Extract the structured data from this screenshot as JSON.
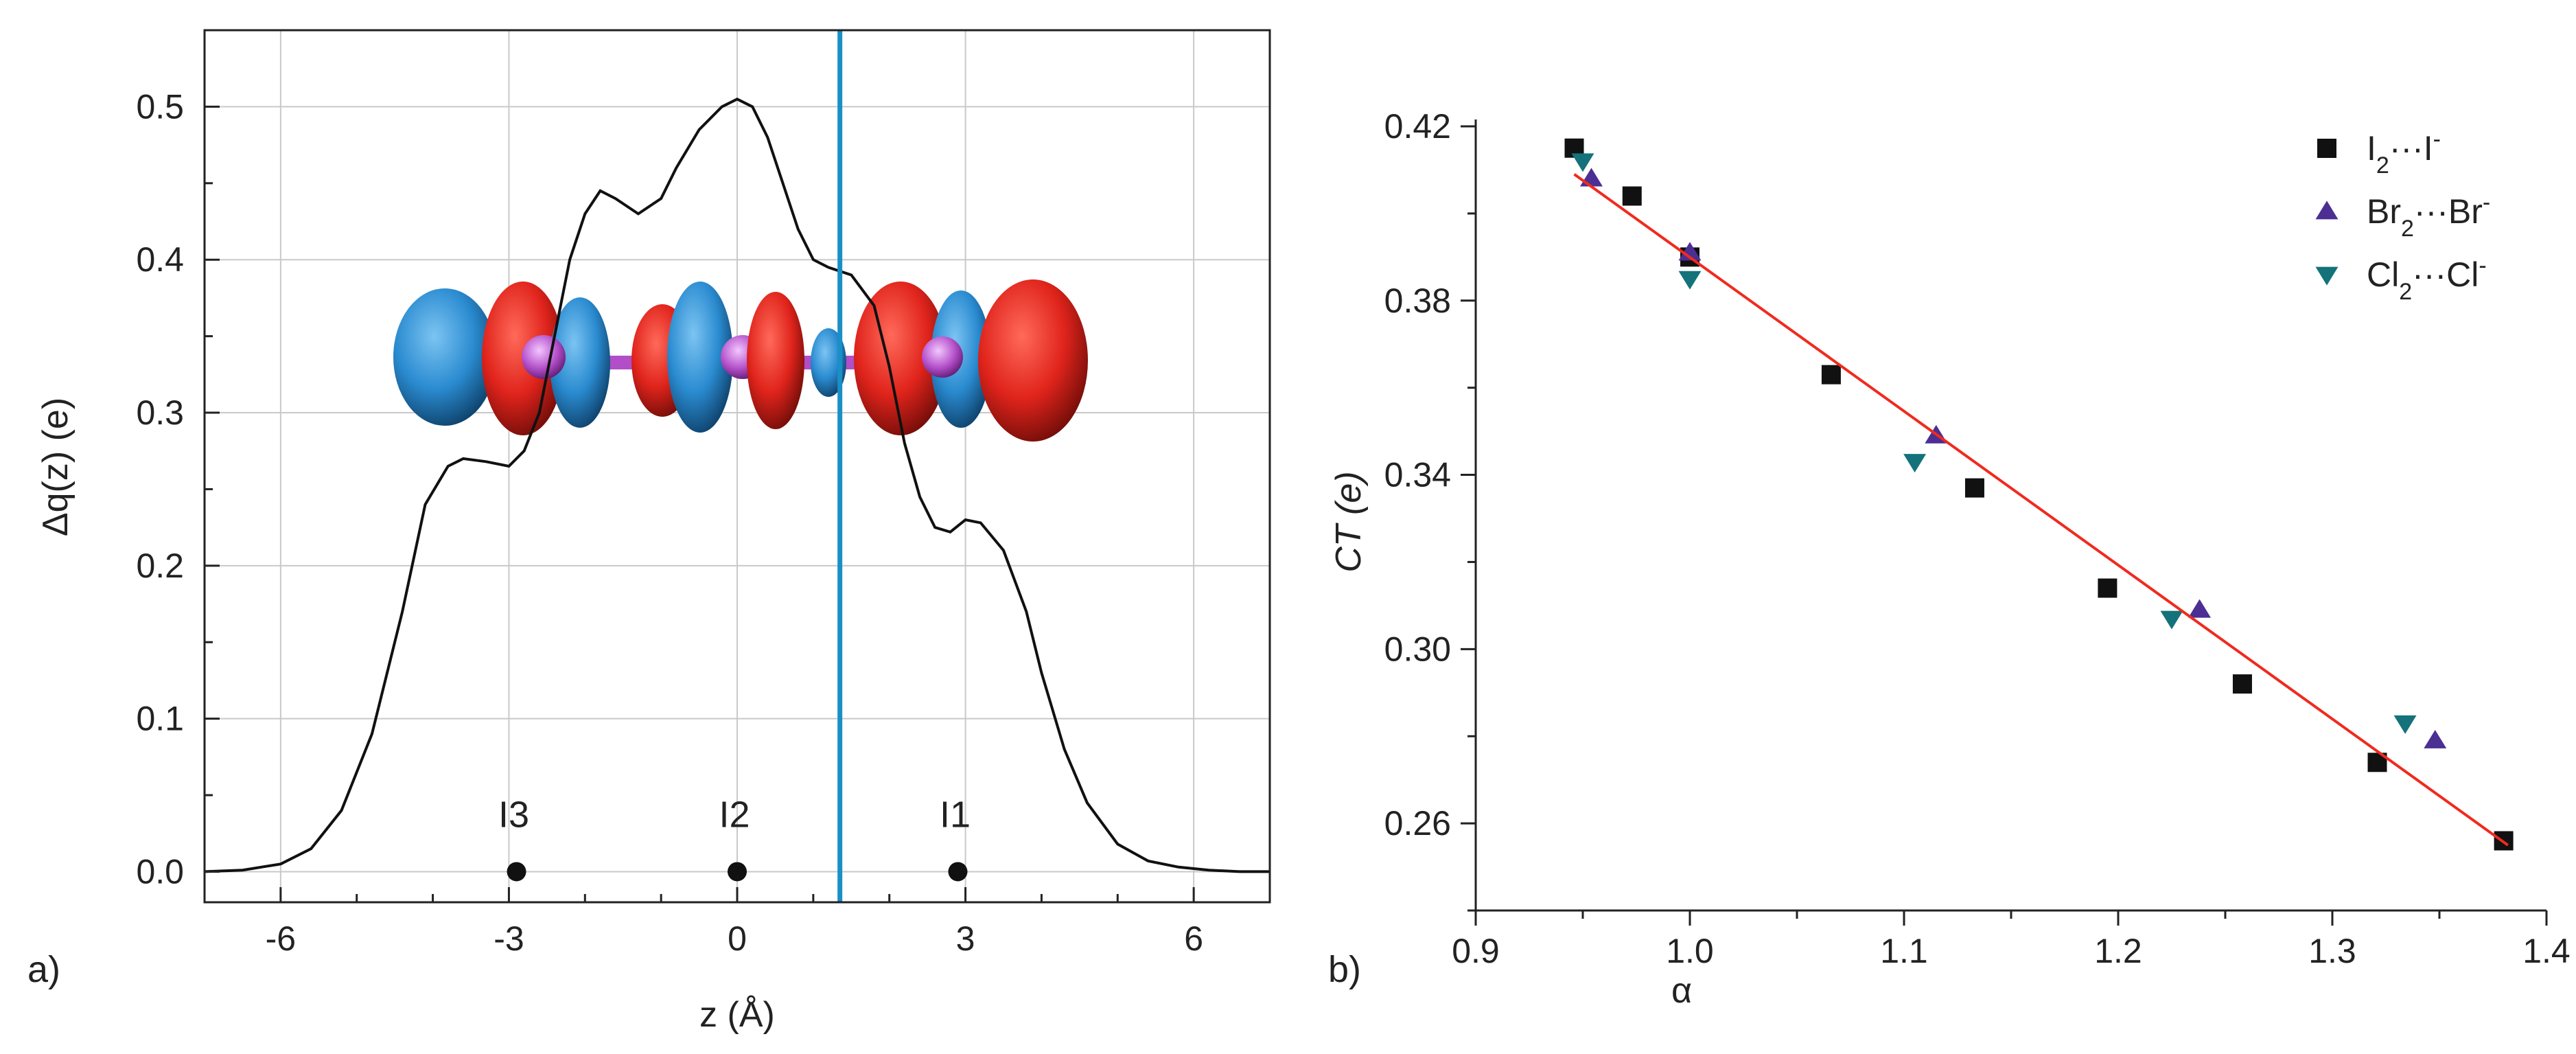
{
  "panels": {
    "a": "a)",
    "b": "b)"
  },
  "chart_data": [
    {
      "type": "line",
      "xlabel": "z (Å)",
      "ylabel": "Δq(z) (e)",
      "xlim": [
        -7,
        7
      ],
      "ylim": [
        -0.02,
        0.55
      ],
      "xticks": [
        -6,
        -3,
        0,
        3,
        6
      ],
      "yticks": [
        0.0,
        0.1,
        0.2,
        0.3,
        0.4,
        0.5
      ],
      "ytick_labels": [
        "0.0",
        "0.1",
        "0.2",
        "0.3",
        "0.4",
        "0.5"
      ],
      "grid": true,
      "series": [
        {
          "x": [
            -7,
            -6.5,
            -6,
            -5.6,
            -5.2,
            -4.8,
            -4.4,
            -4.1,
            -3.8,
            -3.6,
            -3.3,
            -3.0,
            -2.8,
            -2.6,
            -2.4,
            -2.2,
            -2.0,
            -1.8,
            -1.6,
            -1.3,
            -1.0,
            -0.8,
            -0.5,
            -0.2,
            0.0,
            0.2,
            0.4,
            0.6,
            0.8,
            1.0,
            1.2,
            1.5,
            1.8,
            2.0,
            2.2,
            2.4,
            2.6,
            2.8,
            3.0,
            3.2,
            3.5,
            3.8,
            4.0,
            4.3,
            4.6,
            5.0,
            5.4,
            5.8,
            6.2,
            6.6,
            7.0
          ],
          "y": [
            0.0,
            0.001,
            0.005,
            0.015,
            0.04,
            0.09,
            0.17,
            0.24,
            0.265,
            0.27,
            0.268,
            0.265,
            0.275,
            0.3,
            0.35,
            0.4,
            0.43,
            0.445,
            0.44,
            0.43,
            0.44,
            0.46,
            0.485,
            0.5,
            0.505,
            0.5,
            0.48,
            0.45,
            0.42,
            0.4,
            0.395,
            0.39,
            0.37,
            0.33,
            0.28,
            0.245,
            0.225,
            0.222,
            0.23,
            0.228,
            0.21,
            0.17,
            0.13,
            0.08,
            0.045,
            0.018,
            0.007,
            0.003,
            0.001,
            0.0,
            0.0
          ]
        }
      ],
      "markers": [
        {
          "x": -2.9,
          "y": 0.0,
          "label": "I3"
        },
        {
          "x": 0.0,
          "y": 0.0,
          "label": "I2"
        },
        {
          "x": 2.9,
          "y": 0.0,
          "label": "I1"
        }
      ],
      "vline": {
        "x": 1.35,
        "color": "#1a8fc7"
      },
      "colors": {
        "line": "#111111",
        "marker": "#111111",
        "lobe_positive": "#e0241c",
        "lobe_negative": "#2a8bd0",
        "atom": "#b24ec8"
      }
    },
    {
      "type": "scatter",
      "xlabel": "α",
      "ylabel": "CT (e)",
      "xlim": [
        0.9,
        1.4
      ],
      "ylim": [
        0.24,
        0.42
      ],
      "xticks": [
        0.9,
        1.0,
        1.1,
        1.2,
        1.3,
        1.4
      ],
      "xtick_labels": [
        "0.9",
        "1.0",
        "1.1",
        "1.2",
        "1.3",
        "1.4"
      ],
      "yticks": [
        0.26,
        0.3,
        0.34,
        0.38,
        0.42
      ],
      "ytick_labels": [
        "0.26",
        "0.30",
        "0.34",
        "0.38",
        "0.42"
      ],
      "grid": false,
      "legend_position": "top-right",
      "series": [
        {
          "name_base": "I",
          "name_sub": "2",
          "name_mid": "···I",
          "name_sup": "-",
          "marker": "square",
          "color": "#111111",
          "x": [
            0.946,
            0.973,
            1.0,
            1.066,
            1.133,
            1.195,
            1.258,
            1.321,
            1.38
          ],
          "y": [
            0.415,
            0.404,
            0.39,
            0.363,
            0.337,
            0.314,
            0.292,
            0.274,
            0.256
          ]
        },
        {
          "name_base": "Br",
          "name_sub": "2",
          "name_mid": "···Br",
          "name_sup": "-",
          "marker": "triangle-up",
          "color": "#4b2f93",
          "x": [
            0.954,
            1.0,
            1.115,
            1.238,
            1.348
          ],
          "y": [
            0.408,
            0.391,
            0.349,
            0.309,
            0.279
          ]
        },
        {
          "name_base": "Cl",
          "name_sub": "2",
          "name_mid": "···Cl",
          "name_sup": "-",
          "marker": "triangle-down",
          "color": "#13727a",
          "x": [
            0.95,
            1.0,
            1.105,
            1.225,
            1.334
          ],
          "y": [
            0.412,
            0.385,
            0.343,
            0.307,
            0.283
          ]
        }
      ],
      "fit_line": {
        "x": [
          0.946,
          1.382
        ],
        "y": [
          0.409,
          0.255
        ],
        "color": "#f02a1e"
      }
    }
  ]
}
